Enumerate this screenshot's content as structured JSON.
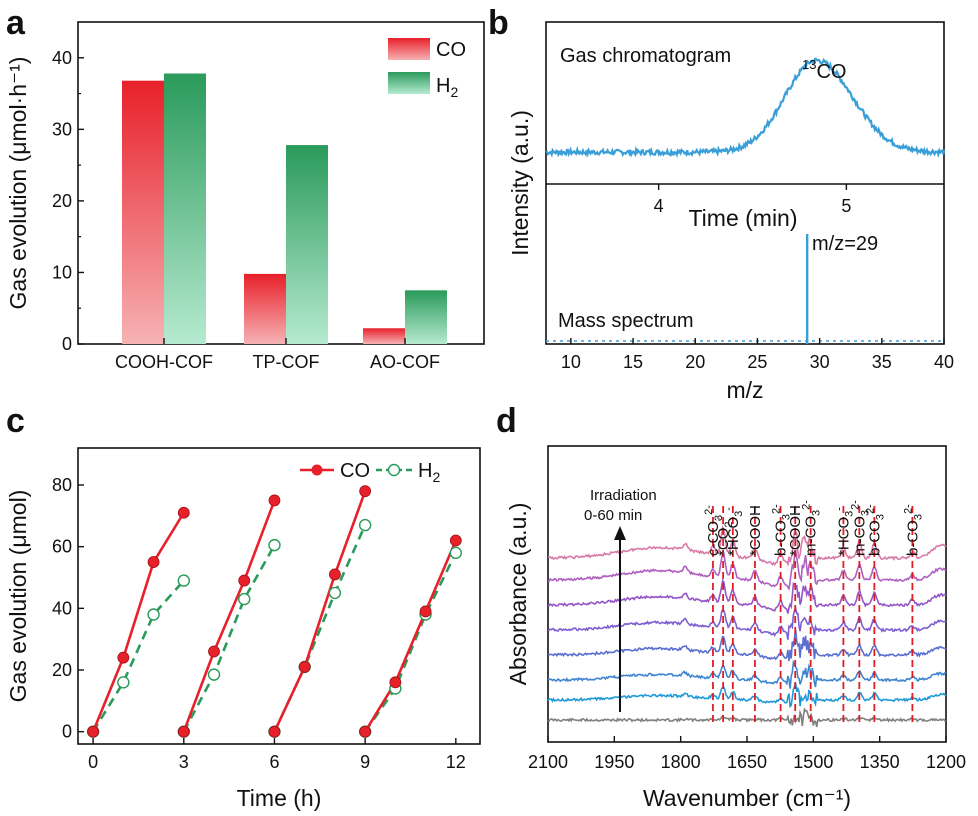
{
  "colors": {
    "co_red": "#e8202a",
    "h2_green": "#2a9a5a",
    "gc_blue": "#3a9fd8",
    "axis": "#111111"
  },
  "chart_data": [
    {
      "panel": "a",
      "type": "bar",
      "categories": [
        "COOH-COF",
        "TP-COF",
        "AO-COF"
      ],
      "series": [
        {
          "name": "CO",
          "values": [
            36.8,
            9.8,
            2.2
          ]
        },
        {
          "name": "H2",
          "values": [
            37.8,
            27.8,
            7.5
          ]
        }
      ],
      "ylabel": "Gas evolution (μmol·h⁻¹)",
      "ylim": [
        0,
        45
      ],
      "yticks": [
        0,
        10,
        20,
        30,
        40
      ],
      "legend": "top-right",
      "legend_labels": {
        "co": "CO",
        "h2_main": "H",
        "h2_sub": "2"
      }
    },
    {
      "panel": "b",
      "type": "line",
      "subplots": [
        {
          "label": "Gas chromatogram",
          "peak_label_sup": "13",
          "peak_label": "CO",
          "xlabel": "Time (min)",
          "xlim": [
            3.4,
            5.52
          ],
          "xticks": [
            4,
            5
          ],
          "baseline_intensity": 0.18,
          "peak_center_min": 4.84,
          "peak_height": 0.78,
          "peak_width_min": 0.16
        },
        {
          "label": "Mass spectrum",
          "annotation": "m/z=29",
          "xlabel": "m/z",
          "xlim": [
            8,
            40
          ],
          "xticks": [
            10,
            15,
            20,
            25,
            30,
            35,
            40
          ],
          "peak_mz": 29,
          "peak_intensity": 1.0
        }
      ],
      "ylabel": "Intensity (a.u.)"
    },
    {
      "panel": "c",
      "type": "line",
      "x": [
        [
          0,
          1,
          2,
          3
        ],
        [
          3,
          4,
          5,
          6
        ],
        [
          6,
          7,
          8,
          9
        ],
        [
          9,
          10,
          11,
          12
        ]
      ],
      "series": [
        {
          "name": "CO",
          "cycles": [
            [
              0,
              24,
              55,
              71
            ],
            [
              0,
              26,
              49,
              75
            ],
            [
              0,
              21,
              51,
              78
            ],
            [
              0,
              16,
              39,
              62
            ]
          ]
        },
        {
          "name": "H2",
          "cycles": [
            [
              0,
              16,
              38,
              49
            ],
            [
              0,
              18.5,
              43,
              60.5
            ],
            [
              0,
              21,
              45,
              67
            ],
            [
              0,
              14,
              38,
              58
            ]
          ]
        }
      ],
      "xlabel": "Time (h)",
      "ylabel": "Gas evolution (μmol)",
      "xlim": [
        -0.5,
        12.8
      ],
      "ylim": [
        -4,
        92
      ],
      "xticks": [
        0,
        3,
        6,
        9,
        12
      ],
      "yticks": [
        0,
        20,
        40,
        60,
        80
      ],
      "legend": "top-right",
      "legend_labels": {
        "co": "CO",
        "h2_main": "H",
        "h2_sub": "2"
      }
    },
    {
      "panel": "d",
      "type": "line",
      "xlabel": "Wavenumber (cm⁻¹)",
      "ylabel": "Absorbance (a.u.)",
      "xlim": [
        2100,
        1200
      ],
      "xticks": [
        2100,
        1950,
        1800,
        1650,
        1500,
        1350,
        1200
      ],
      "arrow_label_line1": "Irradiation",
      "arrow_label_line2": "0-60 min",
      "curve_count": 8,
      "band_labels": [
        {
          "wn": 1727,
          "main": "c-CO",
          "sub": "3",
          "sup": "2-"
        },
        {
          "wn": 1704,
          "main": "*CO",
          "sub": "2",
          "sup": "-"
        },
        {
          "wn": 1682,
          "main": "*HCO",
          "sub": "3",
          "sup": "-"
        },
        {
          "wn": 1632,
          "main": "*COOH",
          "sub": "",
          "sup": ""
        },
        {
          "wn": 1574,
          "main": "b-CO",
          "sub": "3",
          "sup": "2-"
        },
        {
          "wn": 1541,
          "main": "*COOH",
          "sub": "",
          "sup": ""
        },
        {
          "wn": 1506,
          "main": "m-CO",
          "sub": "3",
          "sup": "2-"
        },
        {
          "wn": 1432,
          "main": "*HCO",
          "sub": "3",
          "sup": "-"
        },
        {
          "wn": 1396,
          "main": "m-CO",
          "sub": "3",
          "sup": "2-"
        },
        {
          "wn": 1362,
          "main": "b-CO",
          "sub": "3",
          "sup": "2-"
        },
        {
          "wn": 1276,
          "main": "b-CO",
          "sub": "3",
          "sup": "2-"
        }
      ]
    }
  ]
}
